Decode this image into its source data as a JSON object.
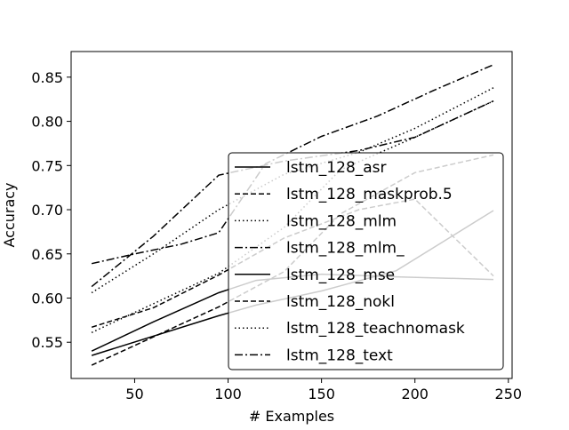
{
  "chart_data": {
    "type": "line",
    "xlabel": "# Examples",
    "ylabel": "Accuracy",
    "xlim": [
      16,
      252
    ],
    "ylim": [
      0.509,
      0.879
    ],
    "xticks": [
      50,
      100,
      150,
      200,
      250
    ],
    "xtick_labels": [
      "50",
      "100",
      "150",
      "200",
      "250"
    ],
    "yticks": [
      0.55,
      0.6,
      0.65,
      0.7,
      0.75,
      0.8,
      0.85
    ],
    "ytick_labels": [
      "0.55",
      "0.60",
      "0.65",
      "0.70",
      "0.75",
      "0.80",
      "0.85"
    ],
    "legend_position": "lower-right",
    "grid": false,
    "series": [
      {
        "name": "lstm_128_asr",
        "style": "solid",
        "color": "#000000",
        "x": [
          27,
          95,
          115,
          150,
          190,
          242
        ],
        "y": [
          0.535,
          0.58,
          0.592,
          0.608,
          0.631,
          0.699
        ]
      },
      {
        "name": "lstm_128_maskprob.5",
        "style": "dashed",
        "color": "#000000",
        "x": [
          27,
          95,
          130,
          160,
          200,
          242
        ],
        "y": [
          0.524,
          0.59,
          0.63,
          0.695,
          0.742,
          0.762
        ]
      },
      {
        "name": "lstm_128_mlm",
        "style": "dotted",
        "color": "#000000",
        "x": [
          27,
          95,
          130,
          160,
          200,
          242
        ],
        "y": [
          0.561,
          0.628,
          0.68,
          0.745,
          0.782,
          0.823
        ]
      },
      {
        "name": "lstm_128_mlm_",
        "style": "dashdot",
        "color": "#000000",
        "x": [
          27,
          60,
          95,
          130,
          170,
          200,
          242
        ],
        "y": [
          0.613,
          0.67,
          0.739,
          0.755,
          0.767,
          0.782,
          0.823
        ]
      },
      {
        "name": "lstm_128_mse",
        "style": "solid",
        "color": "#000000",
        "x": [
          27,
          60,
          95,
          115,
          150,
          190,
          242
        ],
        "y": [
          0.54,
          0.573,
          0.606,
          0.62,
          0.627,
          0.624,
          0.621
        ]
      },
      {
        "name": "lstm_128_nokl",
        "style": "dashed",
        "color": "#000000",
        "x": [
          27,
          60,
          95,
          130,
          170,
          200,
          242
        ],
        "y": [
          0.567,
          0.589,
          0.626,
          0.668,
          0.7,
          0.712,
          0.625
        ]
      },
      {
        "name": "lstm_128_teachnomask",
        "style": "dotted",
        "color": "#000000",
        "x": [
          27,
          60,
          95,
          130,
          170,
          200,
          242
        ],
        "y": [
          0.606,
          0.65,
          0.7,
          0.74,
          0.765,
          0.792,
          0.838
        ]
      },
      {
        "name": "lstm_128_text",
        "style": "dashdot",
        "color": "#000000",
        "x": [
          27,
          50,
          75,
          95,
          120,
          150,
          180,
          210,
          242
        ],
        "y": [
          0.639,
          0.65,
          0.661,
          0.674,
          0.752,
          0.783,
          0.806,
          0.835,
          0.864
        ]
      }
    ]
  }
}
